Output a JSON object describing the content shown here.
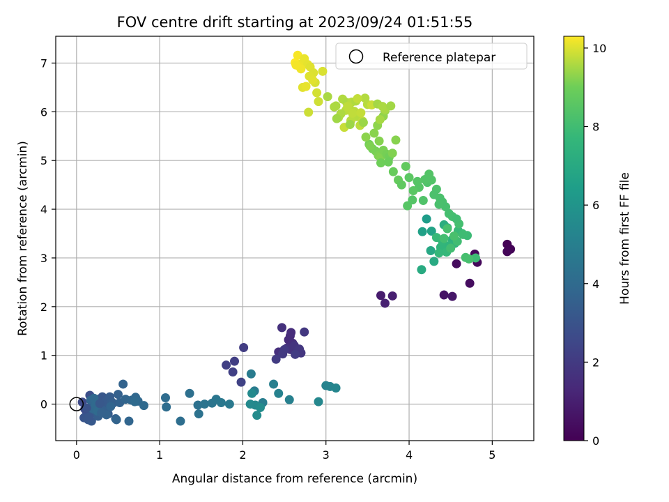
{
  "chart_data": {
    "type": "scatter",
    "title": "FOV centre drift starting at 2023/09/24 01:51:55",
    "xlabel": "Angular distance from reference (arcmin)",
    "ylabel": "Rotation from reference (arcmin)",
    "xlim": [
      -0.25,
      5.5
    ],
    "ylim": [
      -0.75,
      7.55
    ],
    "xticks": [
      0,
      1,
      2,
      3,
      4,
      5
    ],
    "yticks": [
      0,
      1,
      2,
      3,
      4,
      5,
      6,
      7
    ],
    "grid": true,
    "legend": {
      "position": "top-right",
      "entries": [
        "Reference platepar"
      ]
    },
    "reference_point": {
      "x": 0,
      "y": 0
    },
    "colorbar": {
      "label": "Hours from first FF file",
      "range": [
        0,
        10.3
      ],
      "ticks": [
        0,
        2,
        4,
        6,
        8,
        10
      ],
      "colormap": "viridis"
    },
    "series": [
      {
        "x": [
          5.18,
          5.22,
          5.18,
          4.79,
          4.82,
          4.57,
          4.73,
          4.42,
          4.52,
          3.66,
          3.8,
          3.71,
          2.55,
          2.57,
          2.58,
          2.6,
          2.43,
          2.47,
          2.53,
          2.57,
          2.62,
          2.66,
          2.7,
          2.68,
          2.74,
          2.5,
          2.48,
          2.4,
          2.63,
          2.01,
          1.9,
          1.8,
          1.88,
          1.98,
          2.1,
          2.14,
          2.24,
          2.37,
          2.56,
          2.43,
          3.0,
          3.05,
          3.12,
          2.91,
          2.15,
          2.09,
          2.11,
          2.17,
          2.21,
          1.07,
          1.08,
          1.25,
          1.36,
          1.46,
          1.47,
          1.54,
          1.63,
          1.68,
          1.74,
          1.84,
          0.07,
          0.1,
          0.12,
          0.14,
          0.16,
          0.18,
          0.2,
          0.22,
          0.24,
          0.26,
          0.29,
          0.31,
          0.33,
          0.35,
          0.38,
          0.4,
          0.42,
          0.44,
          0.47,
          0.5,
          0.52,
          0.56,
          0.59,
          0.63,
          0.66,
          0.71,
          0.74,
          0.81,
          0.09,
          0.14,
          0.18,
          0.22,
          0.26,
          0.31,
          0.36,
          0.41,
          0.17,
          0.19,
          0.21,
          0.23,
          0.25,
          0.15,
          0.28,
          0.12,
          0.3,
          0.48,
          0.7,
          4.21,
          4.16,
          4.27,
          4.26,
          4.3,
          4.42,
          4.46,
          4.52,
          4.55,
          4.48,
          4.38,
          4.4,
          4.36,
          4.45,
          4.33,
          4.59,
          4.64,
          4.7,
          4.8,
          4.65,
          4.58,
          4.5,
          4.42,
          4.6,
          4.68,
          4.72,
          4.46,
          4.54,
          4.15,
          4.22,
          4.27,
          4.33,
          4.37,
          4.4,
          4.44,
          4.48,
          4.52,
          4.57,
          4.24,
          4.3,
          4.36,
          4.19,
          4.12,
          4.05,
          4.1,
          4.17,
          4.0,
          3.96,
          3.87,
          3.81,
          3.91,
          3.98,
          4.04,
          3.52,
          3.56,
          3.6,
          3.63,
          3.66,
          3.69,
          3.73,
          3.76,
          3.8,
          3.64,
          3.58,
          3.62,
          3.69,
          3.71,
          3.84,
          3.48,
          3.53,
          3.66,
          3.75,
          3.02,
          3.1,
          3.15,
          3.2,
          3.25,
          3.28,
          3.31,
          3.34,
          3.37,
          3.41,
          3.44,
          3.47,
          3.5,
          3.36,
          3.3,
          3.24,
          3.18,
          3.12,
          3.26,
          3.32,
          3.38,
          3.42,
          3.22,
          3.55,
          3.62,
          3.65,
          3.71,
          3.68,
          3.78,
          3.13,
          3.29,
          3.45,
          2.63,
          2.66,
          2.68,
          2.71,
          2.74,
          2.78,
          2.81,
          2.85,
          2.87,
          2.89,
          2.91,
          2.96,
          2.72,
          2.76,
          2.7,
          2.64,
          2.8,
          2.84,
          2.79
        ],
        "y": [
          3.28,
          3.18,
          3.13,
          3.08,
          2.91,
          2.88,
          2.48,
          2.24,
          2.21,
          2.23,
          2.22,
          2.07,
          1.32,
          1.4,
          1.47,
          1.25,
          1.07,
          1.57,
          1.15,
          1.12,
          1.2,
          1.1,
          1.05,
          1.13,
          1.48,
          1.12,
          1.03,
          0.92,
          1.02,
          1.16,
          0.88,
          0.8,
          0.66,
          0.45,
          0.62,
          0.27,
          0.03,
          0.41,
          0.09,
          0.22,
          0.38,
          0.36,
          0.33,
          0.05,
          -0.02,
          0.0,
          0.22,
          -0.23,
          -0.07,
          0.13,
          -0.06,
          -0.35,
          0.22,
          -0.02,
          -0.2,
          0.0,
          0.02,
          0.1,
          0.03,
          0.0,
          0.04,
          -0.1,
          -0.22,
          -0.12,
          0.18,
          -0.04,
          0.07,
          -0.16,
          0.02,
          0.1,
          -0.08,
          0.15,
          -0.05,
          0.05,
          -0.2,
          0.15,
          0.05,
          0.02,
          -0.3,
          0.2,
          0.03,
          0.41,
          0.1,
          -0.35,
          0.08,
          0.14,
          0.06,
          -0.03,
          -0.28,
          -0.32,
          -0.35,
          -0.18,
          -0.25,
          -0.12,
          -0.22,
          -0.05,
          0.08,
          -0.1,
          0.12,
          -0.02,
          -0.14,
          -0.26,
          0.01,
          -0.08,
          -0.18,
          -0.32,
          0.05,
          3.8,
          3.54,
          3.55,
          3.15,
          2.93,
          3.68,
          3.62,
          3.38,
          3.3,
          3.25,
          3.22,
          3.35,
          3.1,
          3.12,
          3.42,
          3.56,
          3.5,
          3.46,
          3.0,
          3.48,
          3.34,
          3.2,
          3.4,
          3.7,
          3.01,
          2.98,
          3.6,
          3.45,
          2.76,
          4.55,
          4.6,
          4.41,
          4.23,
          4.15,
          4.05,
          3.91,
          3.85,
          3.8,
          4.72,
          4.3,
          4.1,
          4.61,
          4.45,
          4.38,
          4.57,
          4.18,
          4.65,
          4.88,
          4.6,
          4.77,
          4.5,
          4.07,
          4.19,
          5.33,
          5.24,
          5.19,
          5.1,
          5.08,
          5.21,
          5.13,
          5.07,
          5.15,
          5.4,
          5.56,
          5.72,
          5.91,
          6.02,
          5.42,
          5.48,
          5.3,
          4.95,
          4.97,
          6.31,
          6.1,
          5.88,
          6.26,
          6.19,
          6.08,
          6.2,
          6.01,
          5.9,
          5.72,
          5.81,
          6.28,
          6.15,
          6.22,
          5.82,
          6.03,
          5.96,
          6.12,
          6.11,
          5.97,
          6.27,
          5.98,
          5.68,
          6.14,
          6.16,
          5.84,
          6.05,
          6.11,
          6.12,
          5.86,
          5.74,
          5.78,
          7.01,
          7.16,
          6.93,
          6.99,
          7.09,
          6.97,
          6.92,
          6.8,
          6.6,
          6.39,
          6.21,
          6.83,
          6.5,
          6.52,
          6.88,
          6.96,
          6.73,
          6.65,
          5.99
        ],
        "hours": [
          0.05,
          0.1,
          0.15,
          0.2,
          0.25,
          0.32,
          0.4,
          0.62,
          0.72,
          0.9,
          1.0,
          1.05,
          1.38,
          1.44,
          1.48,
          1.52,
          1.58,
          1.62,
          1.66,
          1.7,
          1.74,
          1.78,
          1.82,
          1.86,
          1.9,
          1.94,
          1.98,
          2.02,
          2.06,
          2.1,
          2.14,
          2.18,
          2.24,
          2.3,
          4.78,
          4.85,
          4.92,
          4.98,
          5.05,
          5.1,
          5.18,
          5.24,
          5.3,
          5.36,
          5.42,
          5.47,
          5.52,
          5.58,
          5.63,
          4.05,
          4.12,
          4.18,
          4.25,
          4.32,
          4.38,
          4.44,
          4.5,
          4.58,
          4.64,
          4.7,
          2.62,
          2.67,
          2.72,
          2.77,
          2.82,
          2.87,
          2.92,
          2.97,
          3.02,
          3.07,
          3.12,
          3.17,
          3.22,
          3.27,
          3.32,
          3.37,
          3.42,
          3.47,
          3.52,
          3.57,
          3.62,
          3.67,
          3.72,
          3.77,
          3.82,
          3.87,
          3.92,
          3.97,
          3.05,
          3.15,
          3.25,
          3.35,
          3.45,
          3.55,
          3.65,
          3.75,
          3.8,
          3.85,
          3.9,
          3.95,
          4.0,
          3.1,
          3.2,
          2.95,
          3.6,
          3.7,
          4.02,
          6.4,
          6.58,
          6.7,
          6.88,
          7.0,
          7.18,
          7.26,
          7.34,
          7.42,
          7.5,
          7.56,
          7.62,
          7.68,
          7.72,
          7.76,
          7.8,
          7.84,
          7.88,
          7.92,
          7.96,
          8.0,
          8.03,
          8.06,
          8.09,
          8.12,
          8.14,
          8.16,
          8.18,
          7.05,
          8.32,
          8.38,
          8.28,
          8.22,
          8.18,
          8.15,
          8.12,
          8.1,
          8.05,
          8.42,
          8.24,
          8.2,
          8.4,
          8.45,
          8.55,
          8.48,
          8.35,
          8.6,
          8.75,
          8.8,
          8.85,
          8.7,
          8.5,
          8.44,
          9.0,
          9.05,
          9.1,
          9.15,
          9.2,
          9.12,
          9.08,
          9.02,
          9.18,
          9.22,
          9.26,
          9.3,
          9.34,
          9.38,
          9.24,
          9.28,
          9.16,
          9.0,
          8.95,
          9.55,
          9.6,
          9.65,
          9.62,
          9.58,
          9.64,
          9.68,
          9.7,
          9.66,
          9.72,
          9.74,
          9.63,
          9.67,
          9.61,
          9.69,
          9.71,
          9.59,
          9.57,
          9.73,
          9.75,
          9.77,
          9.79,
          9.81,
          9.83,
          9.5,
          9.52,
          9.54,
          9.56,
          9.48,
          9.46,
          9.44,
          9.42,
          10.3,
          10.25,
          10.2,
          10.15,
          10.12,
          10.08,
          10.04,
          10.0,
          9.96,
          9.92,
          9.88,
          9.98,
          10.06,
          10.1,
          10.18,
          10.22,
          10.02,
          10.05,
          9.86
        ]
      }
    ]
  }
}
